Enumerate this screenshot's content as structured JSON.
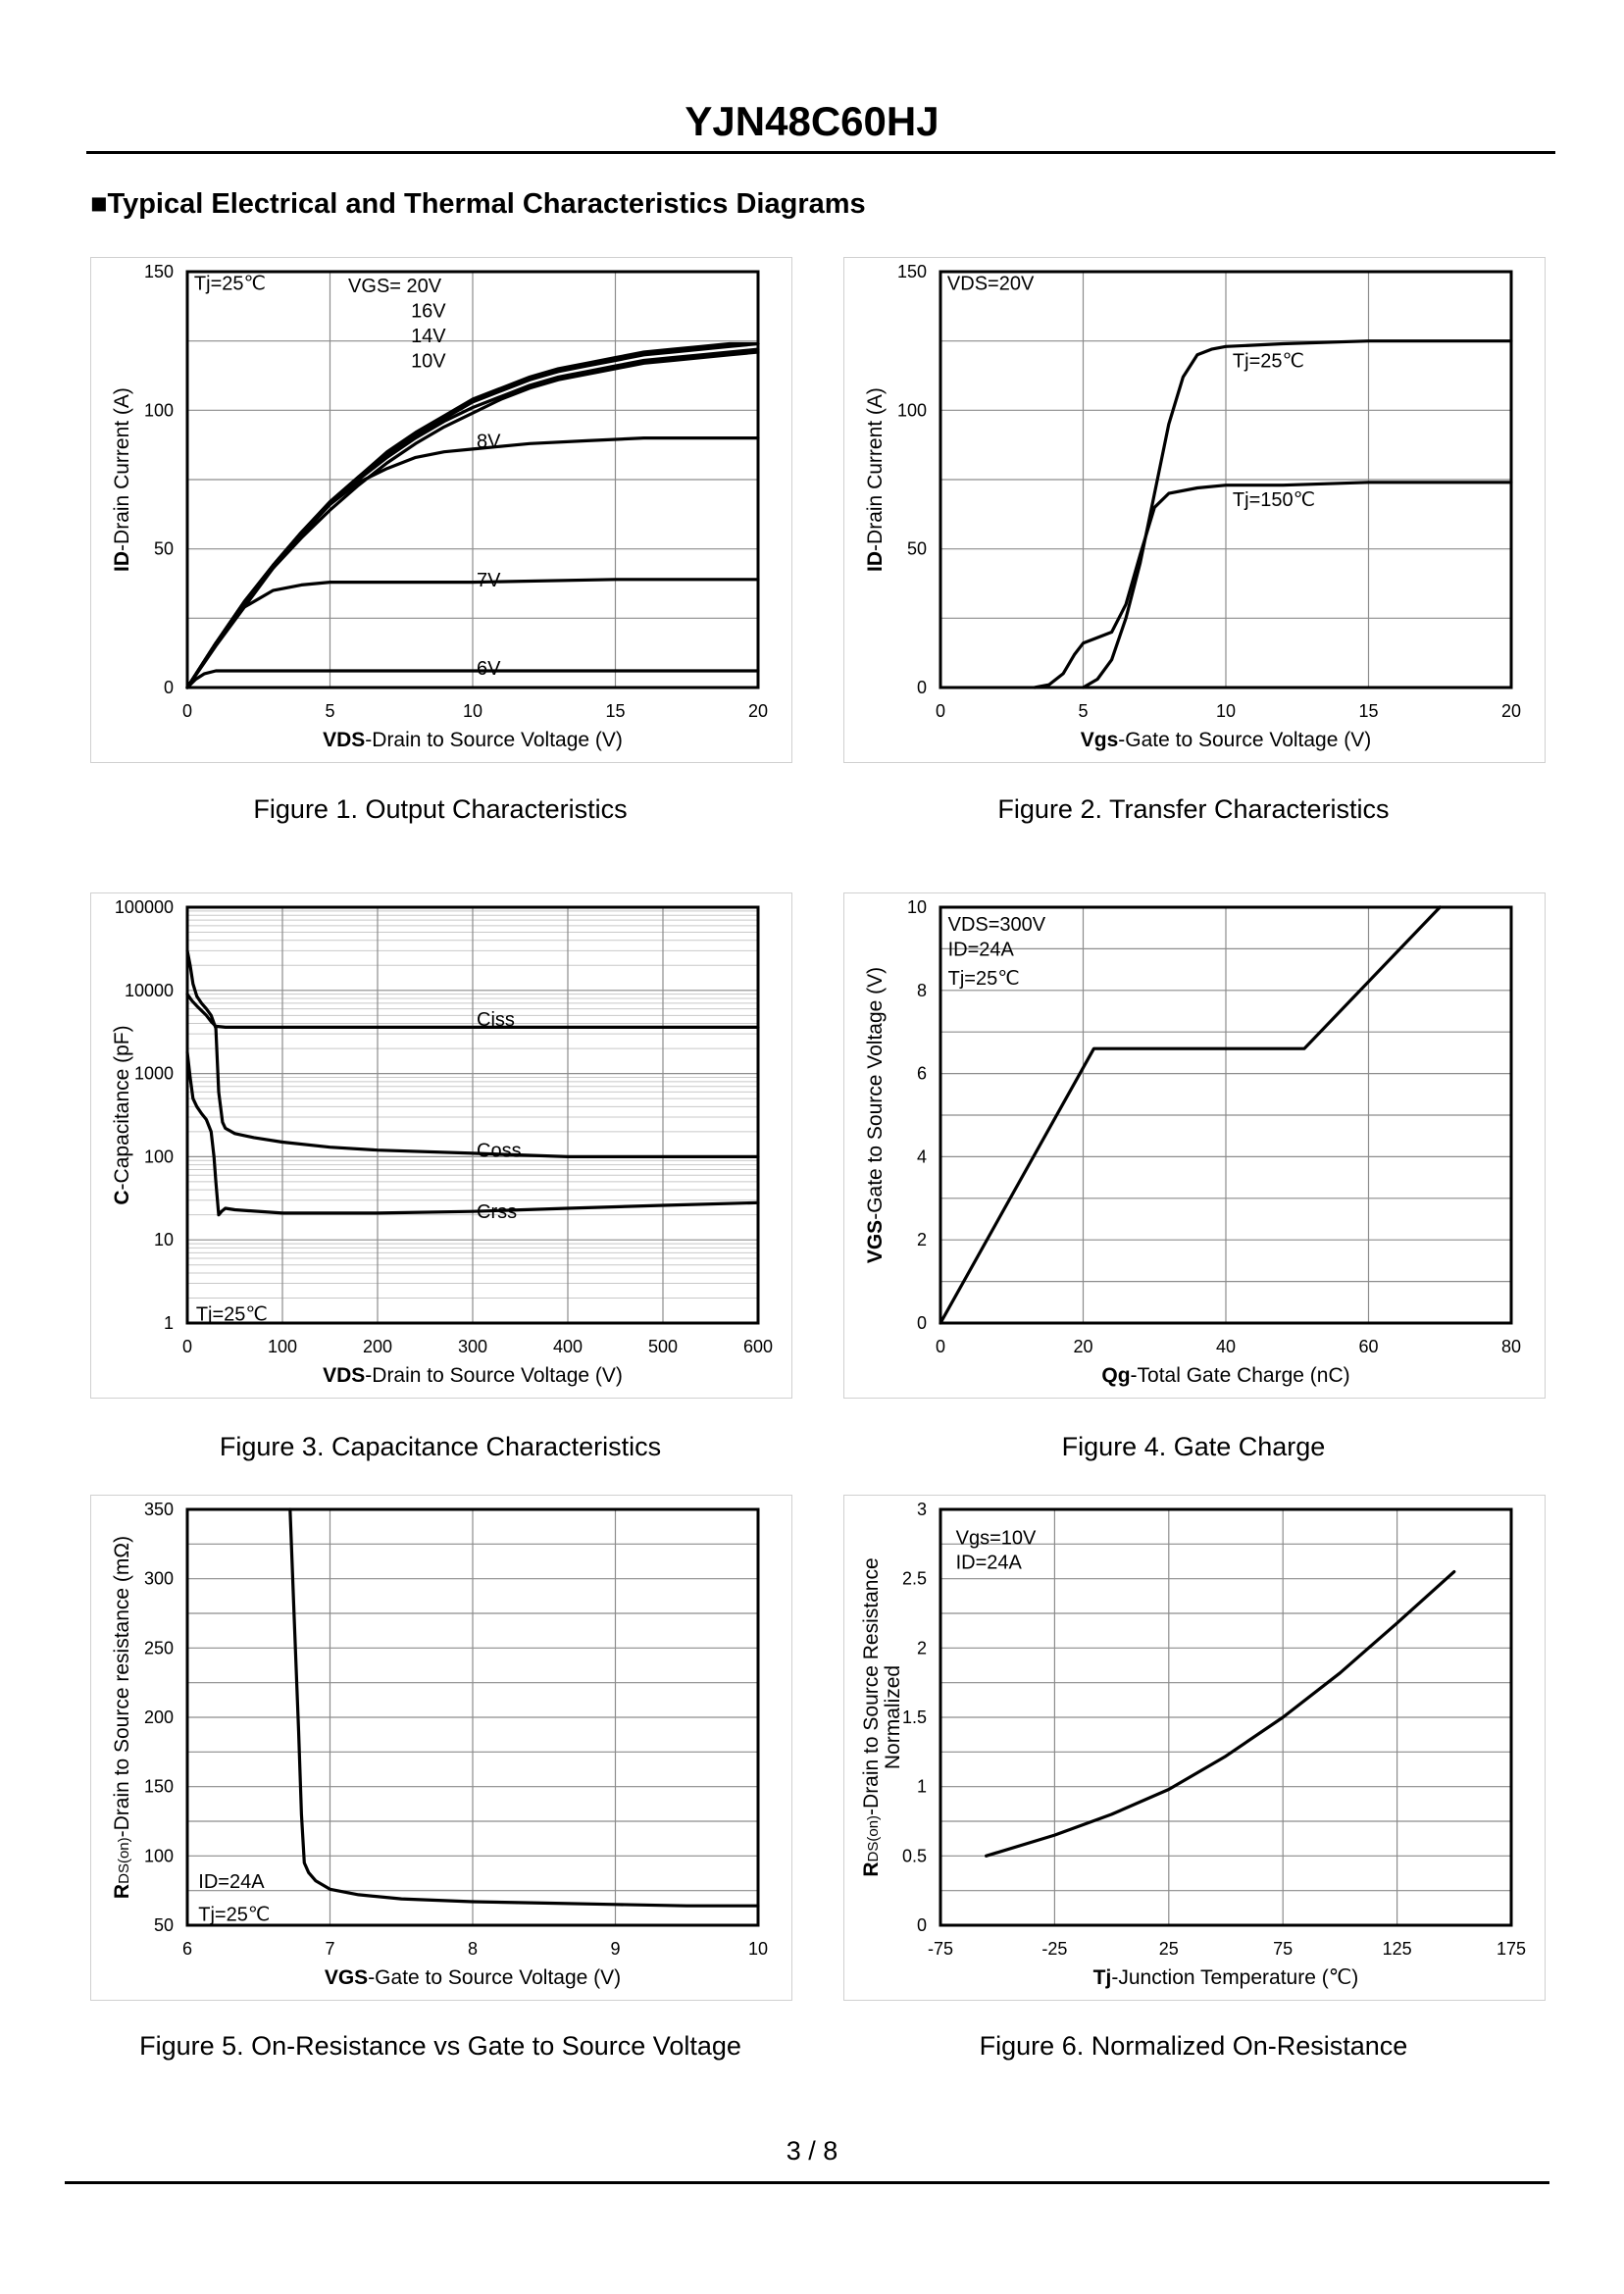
{
  "header": {
    "title": "YJN48C60HJ"
  },
  "section": {
    "heading": "■Typical Electrical and Thermal Characteristics Diagrams"
  },
  "footer": {
    "page": "3 / 8"
  },
  "chart_data": [
    {
      "id": "fig1",
      "type": "line",
      "caption": "Figure 1.  Output Characteristics",
      "xlabel_bold": "VDS",
      "xlabel_rest": "-Drain to Source Voltage (V)",
      "ylabel_bold": "ID",
      "ylabel_rest": "-Drain Current (A)",
      "xlim": [
        0,
        20
      ],
      "ylim": [
        0,
        150
      ],
      "xticks": [
        0,
        5,
        10,
        15,
        20
      ],
      "yticks": [
        0,
        50,
        100,
        150
      ],
      "annotations": [
        {
          "text": "Tj=25℃",
          "x": 0.1,
          "y": 146
        },
        {
          "text": "VGS= 20V",
          "x": 5.5,
          "y": 145
        },
        {
          "text": "16V",
          "x": 7.7,
          "y": 136
        },
        {
          "text": "14V",
          "x": 7.7,
          "y": 127
        },
        {
          "text": "10V",
          "x": 7.7,
          "y": 118
        },
        {
          "text": "8V",
          "x": 10.0,
          "y": 89
        },
        {
          "text": "7V",
          "x": 10.0,
          "y": 39
        },
        {
          "text": "6V",
          "x": 10.0,
          "y": 7
        }
      ],
      "series": [
        {
          "name": "20V",
          "x": [
            0,
            1,
            2,
            3,
            4,
            5,
            6,
            7,
            8,
            9,
            10,
            11,
            12,
            13,
            14,
            15,
            16,
            17,
            18,
            19,
            20
          ],
          "y": [
            0,
            16,
            31,
            44,
            56,
            67,
            76,
            85,
            92,
            98,
            104,
            108,
            112,
            115,
            117,
            119,
            121,
            122,
            123,
            124,
            124
          ]
        },
        {
          "name": "16V",
          "x": [
            0,
            1,
            2,
            3,
            4,
            5,
            6,
            7,
            8,
            9,
            10,
            11,
            12,
            13,
            14,
            15,
            16,
            17,
            18,
            19,
            20
          ],
          "y": [
            0,
            16,
            31,
            44,
            56,
            67,
            76,
            84,
            91,
            97,
            103,
            107,
            111,
            114,
            116,
            118,
            120,
            121,
            122,
            123,
            124
          ]
        },
        {
          "name": "14V",
          "x": [
            0,
            1,
            2,
            3,
            4,
            5,
            6,
            7,
            8,
            9,
            10,
            11,
            12,
            13,
            14,
            15,
            16,
            17,
            18,
            19,
            20
          ],
          "y": [
            0,
            16,
            31,
            44,
            56,
            66,
            75,
            83,
            90,
            96,
            101,
            105,
            109,
            112,
            114,
            116,
            118,
            119,
            120,
            121,
            122
          ]
        },
        {
          "name": "10V",
          "x": [
            0,
            1,
            2,
            3,
            4,
            5,
            6,
            7,
            8,
            9,
            10,
            11,
            12,
            13,
            14,
            15,
            16,
            17,
            18,
            19,
            20
          ],
          "y": [
            0,
            16,
            30,
            43,
            54,
            64,
            73,
            81,
            88,
            94,
            99,
            104,
            108,
            111,
            113,
            115,
            117,
            118,
            119,
            120,
            121
          ]
        },
        {
          "name": "8V",
          "x": [
            0,
            1,
            2,
            3,
            4,
            5,
            6,
            7,
            8,
            9,
            10,
            12,
            14,
            16,
            18,
            20
          ],
          "y": [
            0,
            15,
            29,
            43,
            55,
            66,
            74,
            79,
            83,
            85,
            86,
            88,
            89,
            90,
            90,
            90
          ]
        },
        {
          "name": "7V",
          "x": [
            0,
            0.5,
            1,
            1.5,
            2,
            3,
            4,
            5,
            6,
            8,
            10,
            15,
            20
          ],
          "y": [
            0,
            8,
            16,
            23,
            29,
            35,
            37,
            38,
            38,
            38,
            38,
            39,
            39
          ]
        },
        {
          "name": "6V",
          "x": [
            0,
            0.3,
            0.6,
            1,
            1.5,
            2,
            3,
            5,
            10,
            15,
            20
          ],
          "y": [
            0,
            3,
            5,
            6,
            6,
            6,
            6,
            6,
            6,
            6,
            6
          ]
        }
      ]
    },
    {
      "id": "fig2",
      "type": "line",
      "caption": "Figure 2.  Transfer Characteristics",
      "xlabel_bold": "Vgs",
      "xlabel_rest": "-Gate to Source Voltage (V)",
      "ylabel_bold": "ID",
      "ylabel_rest": "-Drain Current (A)",
      "xlim": [
        0,
        20
      ],
      "ylim": [
        0,
        150
      ],
      "xticks": [
        0,
        5,
        10,
        15,
        20
      ],
      "yticks": [
        0,
        50,
        100,
        150
      ],
      "annotations": [
        {
          "text": "VDS=20V",
          "x": 0.1,
          "y": 146
        },
        {
          "text": "Tj=25℃",
          "x": 10.1,
          "y": 118
        },
        {
          "text": "Tj=150℃",
          "x": 10.1,
          "y": 68
        }
      ],
      "series": [
        {
          "name": "Tj=25℃",
          "x": [
            5,
            5.5,
            6,
            6.5,
            7,
            7.5,
            8,
            8.5,
            9,
            9.5,
            10,
            12,
            15,
            20
          ],
          "y": [
            0,
            3,
            10,
            25,
            45,
            70,
            95,
            112,
            120,
            122,
            123,
            124,
            125,
            125
          ]
        },
        {
          "name": "Tj=150℃",
          "x": [
            3.3,
            3.8,
            4.3,
            4.7,
            5,
            5.5,
            6,
            6.5,
            7,
            7.5,
            8,
            9,
            10,
            12,
            15,
            20
          ],
          "y": [
            0,
            1,
            5,
            12,
            16,
            18,
            20,
            30,
            48,
            65,
            70,
            72,
            73,
            73,
            74,
            74
          ]
        }
      ]
    },
    {
      "id": "fig3",
      "type": "line",
      "caption": "Figure 3.  Capacitance Characteristics",
      "xlabel_bold": "VDS",
      "xlabel_rest": "-Drain to Source Voltage (V)",
      "ylabel_bold": "C",
      "ylabel_rest": "-Capacitance (pF)",
      "yscale": "log",
      "xlim": [
        0,
        600
      ],
      "ylim": [
        1,
        100000
      ],
      "xticks": [
        0,
        100,
        200,
        300,
        400,
        500,
        600
      ],
      "yticks": [
        1,
        10,
        100,
        1000,
        10000,
        100000
      ],
      "ytick_labels": [
        "1",
        "10",
        "100",
        "1000",
        "10000",
        "100000"
      ],
      "annotations": [
        {
          "text": "Ciss",
          "x": 300,
          "y": 4500
        },
        {
          "text": "Coss",
          "x": 300,
          "y": 120
        },
        {
          "text": "Crss",
          "x": 300,
          "y": 22
        },
        {
          "text": "Tj=25℃",
          "x": 5,
          "y": 1.3
        }
      ],
      "series": [
        {
          "name": "Ciss",
          "x": [
            0,
            5,
            10,
            20,
            25,
            30,
            40,
            100,
            200,
            300,
            400,
            500,
            600
          ],
          "y": [
            9000,
            7500,
            6500,
            5000,
            4200,
            3700,
            3600,
            3600,
            3600,
            3600,
            3600,
            3600,
            3600
          ]
        },
        {
          "name": "Coss",
          "x": [
            0,
            3,
            6,
            10,
            15,
            20,
            25,
            30,
            33,
            37,
            40,
            50,
            70,
            100,
            150,
            200,
            300,
            400,
            500,
            600
          ],
          "y": [
            30000,
            20000,
            12000,
            8500,
            7000,
            6000,
            5000,
            3500,
            600,
            260,
            220,
            190,
            170,
            150,
            130,
            120,
            110,
            100,
            100,
            100
          ]
        },
        {
          "name": "Crss",
          "x": [
            0,
            3,
            6,
            10,
            15,
            20,
            25,
            28,
            30,
            33,
            36,
            40,
            50,
            100,
            200,
            300,
            400,
            500,
            600
          ],
          "y": [
            1800,
            900,
            500,
            400,
            330,
            280,
            200,
            100,
            50,
            20,
            22,
            24,
            23,
            21,
            21,
            22,
            24,
            26,
            28
          ]
        }
      ]
    },
    {
      "id": "fig4",
      "type": "line",
      "caption": "Figure 4.  Gate Charge",
      "xlabel_bold": "Qg",
      "xlabel_rest": "-Total Gate Charge (nC)",
      "ylabel_bold": "VGS",
      "ylabel_rest": "-Gate to Source Voltage (V)",
      "xlim": [
        0,
        80
      ],
      "ylim": [
        0,
        10
      ],
      "xticks": [
        0,
        20,
        40,
        60,
        80
      ],
      "yticks": [
        0,
        2,
        4,
        6,
        8,
        10
      ],
      "annotations": [
        {
          "text": "VDS=300V",
          "x": 0.5,
          "y": 9.6
        },
        {
          "text": "ID=24A",
          "x": 0.5,
          "y": 9.0
        },
        {
          "text": "Tj=25℃",
          "x": 0.5,
          "y": 8.3
        }
      ],
      "series": [
        {
          "name": "VGS",
          "x": [
            0,
            21.5,
            51,
            70
          ],
          "y": [
            0,
            6.6,
            6.6,
            10
          ]
        }
      ]
    },
    {
      "id": "fig5",
      "type": "line",
      "caption": "Figure 5.  On-Resistance vs Gate to Source Voltage",
      "xlabel_bold": "VGS",
      "xlabel_rest": "-Gate to Source Voltage (V)",
      "ylabel_bold": "R",
      "ylabel_sub": "DS(on)",
      "ylabel_rest": "-Drain to Source resistance (mΩ)",
      "xlim": [
        6,
        10
      ],
      "ylim": [
        50,
        350
      ],
      "xticks": [
        6,
        7,
        8,
        9,
        10
      ],
      "yticks": [
        50,
        100,
        150,
        200,
        250,
        300,
        350
      ],
      "annotations": [
        {
          "text": "ID=24A",
          "x": 6.05,
          "y": 82
        },
        {
          "text": "Tj=25℃",
          "x": 6.05,
          "y": 58
        }
      ],
      "series": [
        {
          "name": "RDS(on)",
          "x": [
            6.72,
            6.75,
            6.78,
            6.8,
            6.82,
            6.85,
            6.9,
            7,
            7.2,
            7.5,
            8,
            8.5,
            9,
            9.5,
            10
          ],
          "y": [
            350,
            270,
            190,
            130,
            95,
            88,
            82,
            76,
            72,
            69,
            67,
            66,
            65,
            64,
            64
          ]
        }
      ]
    },
    {
      "id": "fig6",
      "type": "line",
      "caption": "Figure 6.  Normalized On-Resistance",
      "xlabel_bold": "Tj",
      "xlabel_rest": "-Junction  Temperature  (℃)",
      "ylabel_bold": "R",
      "ylabel_sub": "DS(on)",
      "ylabel_rest": "-Drain to Source Resistance",
      "ylabel_line2": "Normalized",
      "xlim": [
        -75,
        175
      ],
      "ylim": [
        0,
        3
      ],
      "xticks": [
        -75,
        -25,
        25,
        75,
        125,
        175
      ],
      "yticks": [
        0,
        0.5,
        1,
        1.5,
        2,
        2.5,
        3
      ],
      "annotations": [
        {
          "text": "Vgs=10V",
          "x": -70,
          "y": 2.8
        },
        {
          "text": "ID=24A",
          "x": -70,
          "y": 2.62
        }
      ],
      "series": [
        {
          "name": "RDS(on) normalized",
          "x": [
            -55,
            -25,
            0,
            25,
            50,
            75,
            100,
            125,
            150
          ],
          "y": [
            0.5,
            0.65,
            0.8,
            0.98,
            1.22,
            1.5,
            1.82,
            2.18,
            2.55
          ]
        }
      ]
    }
  ]
}
